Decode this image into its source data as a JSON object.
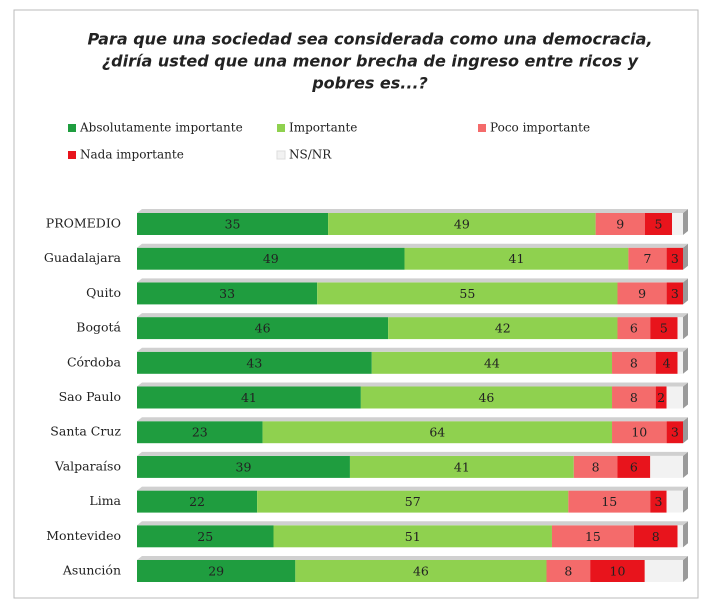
{
  "chart_data": {
    "type": "stacked_barh",
    "title": [
      "Para que una sociedad sea considerada como una democracia,",
      "¿diría usted que una menor brecha de ingreso entre ricos y",
      "pobres es...?"
    ],
    "categories": [
      "PROMEDIO",
      "Guadalajara",
      "Quito",
      "Bogotá",
      "Córdoba",
      "Sao Paulo",
      "Santa Cruz",
      "Valparaíso",
      "Lima",
      "Montevideo",
      "Asunción"
    ],
    "series": [
      {
        "name": "Absolutamente importante",
        "color": "#1f9d3f",
        "data_labels": true,
        "values": [
          35,
          49,
          33,
          46,
          43,
          41,
          23,
          39,
          22,
          25,
          29
        ]
      },
      {
        "name": "Importante",
        "color": "#8fd14f",
        "data_labels": true,
        "values": [
          49,
          41,
          55,
          42,
          44,
          46,
          64,
          41,
          57,
          51,
          46
        ]
      },
      {
        "name": "Poco importante",
        "color": "#f46b6b",
        "data_labels": true,
        "values": [
          9,
          7,
          9,
          6,
          8,
          8,
          10,
          8,
          15,
          15,
          8
        ]
      },
      {
        "name": "Nada importante",
        "color": "#e8141c",
        "data_labels": true,
        "values": [
          5,
          3,
          3,
          5,
          4,
          2,
          3,
          6,
          3,
          8,
          10
        ]
      },
      {
        "name": "NS/NR",
        "color": "#f2f2f2",
        "data_labels": false,
        "values": [
          2,
          0,
          0,
          1,
          1,
          3,
          0,
          6,
          3,
          1,
          7
        ]
      }
    ],
    "xlim": [
      0,
      100
    ]
  }
}
